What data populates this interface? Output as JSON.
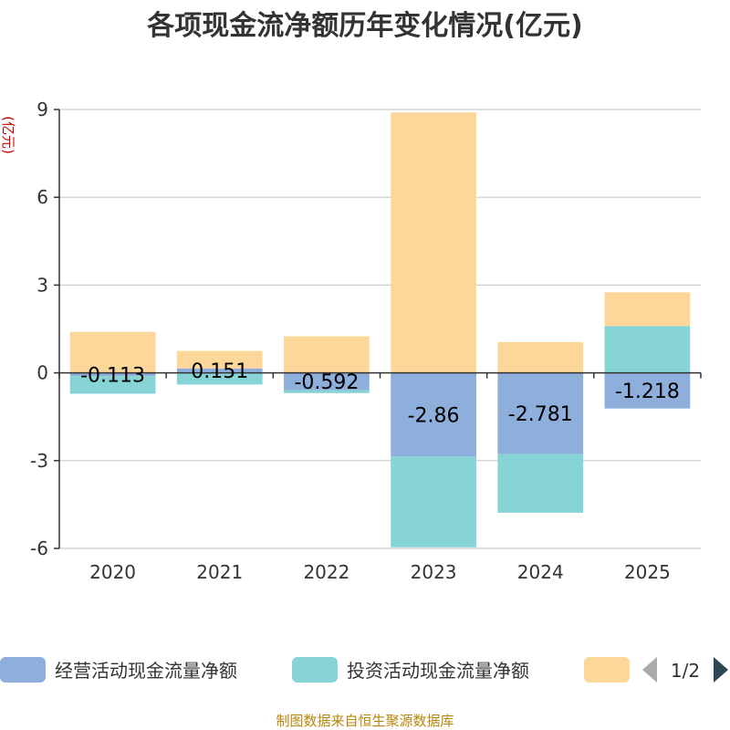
{
  "chart_data": {
    "type": "bar",
    "stacked": true,
    "title": "各项现金流净额历年变化情况(亿元)",
    "ylabel": "(亿元)",
    "ylim": [
      -6,
      9
    ],
    "yticks": [
      9,
      6,
      3,
      0,
      -3,
      -6
    ],
    "categories": [
      "2020",
      "2021",
      "2022",
      "2023",
      "2024",
      "2025"
    ],
    "series": [
      {
        "name": "经营活动现金流量净额",
        "color": "#8eaedb",
        "values": [
          -0.113,
          0.15,
          -0.592,
          -2.86,
          -2.781,
          -1.218
        ],
        "labels": [
          "-0.113",
          "0.151",
          "-0.592",
          "-2.86",
          "-2.781",
          "-1.218"
        ]
      },
      {
        "name": "投资活动现金流量净额",
        "color": "#86d4d6",
        "values": [
          -0.6,
          -0.4,
          -0.1,
          -3.1,
          -2.0,
          1.6
        ]
      },
      {
        "name": "",
        "color": "#fdd79a",
        "values": [
          1.4,
          0.6,
          1.25,
          8.9,
          1.05,
          1.15
        ]
      }
    ]
  },
  "legend": {
    "page_text": "1/2",
    "prev_color": "#aaaaaa",
    "next_color": "#2f4554"
  },
  "footer": {
    "source_text": "制图数据来自恒生聚源数据库"
  }
}
